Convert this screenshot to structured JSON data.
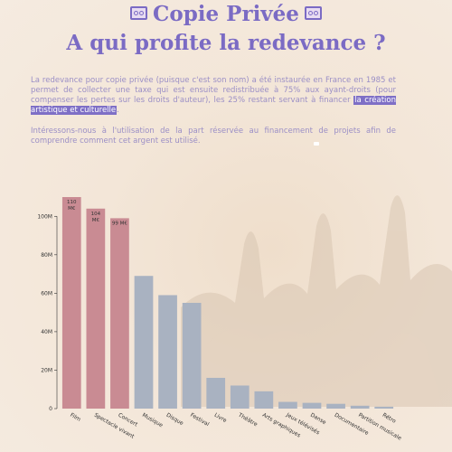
{
  "header": {
    "title_line1": "Copie Privée",
    "title_line2": "A qui profite la redevance ?"
  },
  "intro": {
    "p1_text": "La redevance pour copie privée (puisque c'est son nom) a été instaurée en France en 1985 et permet de collecter une taxe qui est ensuite redistribuée à 75% aux ayant-droits (pour compenser les pertes sur les droits d'auteur), les 25% restant servant à financer ",
    "p1_highlight": "la création artistique et culturelle",
    "p1_end": ".",
    "p2": "Intéressons-nous à l'utilisation de la part réservée au financement de projets afin de comprendre comment cet argent est utilisé."
  },
  "colors": {
    "title": "#7b6bc4",
    "highlight_bg": "#7e6fc6",
    "bar_highlight": "#c98b93",
    "bar_default": "#a9b2c1"
  },
  "chart_data": {
    "type": "bar",
    "categories": [
      "Film",
      "Spectacle vivant",
      "Concert",
      "Musique",
      "Disque",
      "Festival",
      "Livre",
      "Théâtre",
      "Arts graphiques",
      "Jeux télévisés",
      "Danse",
      "Documentaire",
      "Partition musicale",
      "Rétro"
    ],
    "values": [
      110,
      104,
      99,
      69,
      59,
      55,
      16,
      12,
      9,
      3.5,
      3,
      2.5,
      1.5,
      1
    ],
    "value_labels": [
      "110 M€",
      "104 M€",
      "99 M€",
      "",
      "",
      "",
      "",
      "",
      "",
      "",
      "",
      "",
      "",
      ""
    ],
    "highlighted": [
      true,
      true,
      true,
      false,
      false,
      false,
      false,
      false,
      false,
      false,
      false,
      false,
      false,
      false
    ],
    "y_ticks": [
      0,
      20,
      40,
      60,
      80,
      100
    ],
    "y_tick_labels": [
      "0",
      "20M",
      "40M",
      "60M",
      "80M",
      "100M"
    ],
    "ylim": [
      0,
      110
    ],
    "grid": false,
    "legend": "none"
  }
}
